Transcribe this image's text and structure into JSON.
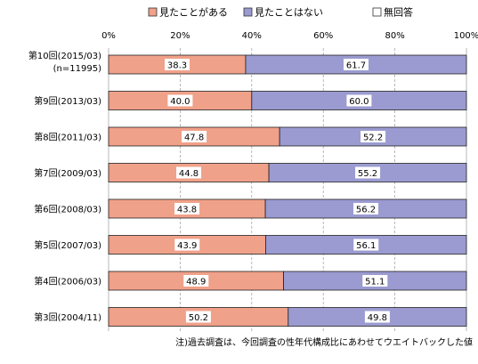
{
  "chart_data": {
    "type": "bar",
    "orientation": "horizontal",
    "stacked": true,
    "percent_axis": true,
    "xlim": [
      0,
      100
    ],
    "xticks": [
      "0%",
      "20%",
      "40%",
      "60%",
      "80%",
      "100%"
    ],
    "grid": true,
    "legend_position": "top",
    "categories": [
      [
        "第10回(2015/03)",
        "(n=11995)"
      ],
      [
        "第9回(2013/03)"
      ],
      [
        "第8回(2011/03)"
      ],
      [
        "第7回(2009/03)"
      ],
      [
        "第6回(2008/03)"
      ],
      [
        "第5回(2007/03)"
      ],
      [
        "第4回(2006/03)"
      ],
      [
        "第3回(2004/11)"
      ]
    ],
    "series": [
      {
        "name": "見たことがある",
        "color": "#f0a189",
        "values": [
          38.3,
          40.0,
          47.8,
          44.8,
          43.8,
          43.9,
          48.9,
          50.2
        ]
      },
      {
        "name": "見たことはない",
        "color": "#9b9bd1",
        "values": [
          61.7,
          60.0,
          52.2,
          55.2,
          56.2,
          56.1,
          51.1,
          49.8
        ]
      },
      {
        "name": "無回答",
        "color": "#ffffff",
        "values": [
          0,
          0,
          0,
          0,
          0,
          0,
          0,
          0
        ]
      }
    ],
    "labels": [
      [
        "38.3",
        "61.7"
      ],
      [
        "40.0",
        "60.0"
      ],
      [
        "47.8",
        "52.2"
      ],
      [
        "44.8",
        "55.2"
      ],
      [
        "43.8",
        "56.2"
      ],
      [
        "43.9",
        "56.1"
      ],
      [
        "48.9",
        "51.1"
      ],
      [
        "50.2",
        "49.8"
      ]
    ],
    "footnote": "注)過去調査は、今回調査の性年代構成比にあわせてウエイトバックした値"
  }
}
